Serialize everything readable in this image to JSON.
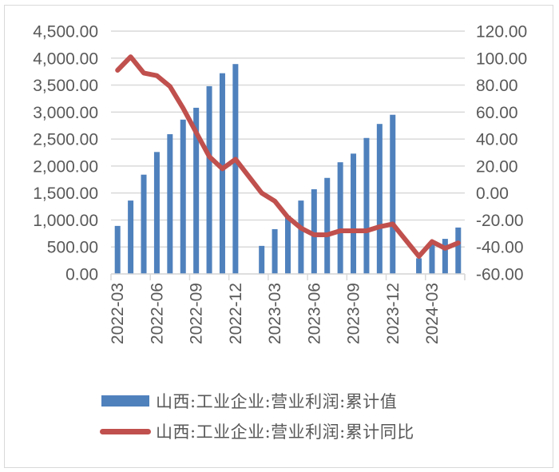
{
  "chart_data": {
    "type": "bar+line",
    "title": "",
    "xlabel": "",
    "ylabel_left": "",
    "ylabel_right": "",
    "categories": [
      "2022-03",
      "2022-04",
      "2022-05",
      "2022-06",
      "2022-07",
      "2022-08",
      "2022-09",
      "2022-10",
      "2022-11",
      "2022-12",
      "2023-01",
      "2023-02",
      "2023-03",
      "2023-04",
      "2023-05",
      "2023-06",
      "2023-07",
      "2023-08",
      "2023-09",
      "2023-10",
      "2023-11",
      "2023-12",
      "2024-01",
      "2024-02",
      "2024-03",
      "2024-04",
      "2024-05"
    ],
    "x_tick_labels": [
      "2022-03",
      "2022-06",
      "2022-09",
      "2022-12",
      "2023-03",
      "2023-06",
      "2023-09",
      "2023-12",
      "2024-03"
    ],
    "series": [
      {
        "name": "山西:工业企业:营业利润:累计值",
        "type": "bar",
        "axis": "left",
        "color": "#4f81bd",
        "values": [
          890,
          1360,
          1840,
          2260,
          2590,
          2860,
          3080,
          3480,
          3720,
          3890,
          null,
          520,
          830,
          1080,
          1360,
          1570,
          1780,
          2070,
          2230,
          2520,
          2780,
          2950,
          null,
          290,
          550,
          650,
          860
        ]
      },
      {
        "name": "山西:工业企业:营业利润:累计同比",
        "type": "line",
        "axis": "right",
        "color": "#c0504d",
        "values": [
          91,
          101,
          89,
          87,
          79,
          63,
          45,
          27,
          18,
          25,
          null,
          0,
          -6,
          -18,
          -26,
          -31,
          -31,
          -28,
          -28,
          -28,
          -25,
          -23,
          null,
          -47,
          -36,
          -41,
          -37
        ]
      }
    ],
    "left_axis": {
      "ylim": [
        0,
        4500
      ],
      "ticks": [
        "0.00",
        "500.00",
        "1,000.00",
        "1,500.00",
        "2,000.00",
        "2,500.00",
        "3,000.00",
        "3,500.00",
        "4,000.00",
        "4,500.00"
      ]
    },
    "right_axis": {
      "ylim": [
        -60,
        120
      ],
      "ticks": [
        "-60.00",
        "-40.00",
        "-20.00",
        "0.00",
        "20.00",
        "40.00",
        "60.00",
        "80.00",
        "100.00",
        "120.00"
      ]
    },
    "grid": true,
    "legend_position": "bottom"
  },
  "legend": {
    "items": [
      {
        "label": "山西:工业企业:营业利润:累计值",
        "kind": "bar"
      },
      {
        "label": "山西:工业企业:营业利润:累计同比",
        "kind": "line"
      }
    ]
  }
}
